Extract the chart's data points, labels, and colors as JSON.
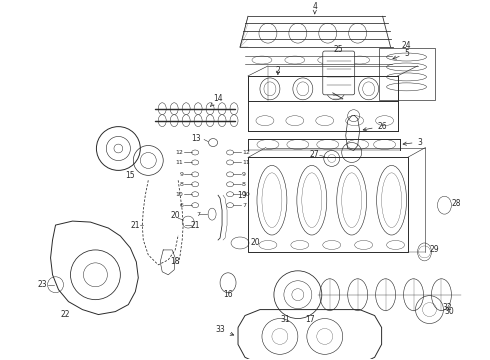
{
  "bg_color": "#ffffff",
  "line_color": "#2a2a2a",
  "fig_width": 4.9,
  "fig_height": 3.6,
  "dpi": 100,
  "lw": 0.7
}
